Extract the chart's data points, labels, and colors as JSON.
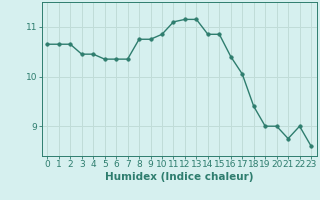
{
  "x": [
    0,
    1,
    2,
    3,
    4,
    5,
    6,
    7,
    8,
    9,
    10,
    11,
    12,
    13,
    14,
    15,
    16,
    17,
    18,
    19,
    20,
    21,
    22,
    23
  ],
  "y": [
    10.65,
    10.65,
    10.65,
    10.45,
    10.45,
    10.35,
    10.35,
    10.35,
    10.75,
    10.75,
    10.85,
    11.1,
    11.15,
    11.15,
    10.85,
    10.85,
    10.4,
    10.05,
    9.4,
    9.0,
    9.0,
    8.75,
    9.0,
    8.6
  ],
  "line_color": "#2e7d6e",
  "marker": "o",
  "markersize": 2.5,
  "linewidth": 1.0,
  "background_color": "#d6f0ef",
  "grid_color": "#c0dcd8",
  "xlabel": "Humidex (Indice chaleur)",
  "xlabel_fontsize": 7.5,
  "ylim": [
    8.4,
    11.5
  ],
  "xlim": [
    -0.5,
    23.5
  ],
  "yticks": [
    9,
    10,
    11
  ],
  "xticks": [
    0,
    1,
    2,
    3,
    4,
    5,
    6,
    7,
    8,
    9,
    10,
    11,
    12,
    13,
    14,
    15,
    16,
    17,
    18,
    19,
    20,
    21,
    22,
    23
  ],
  "tick_fontsize": 6.5,
  "tick_color": "#2e7d6e",
  "spine_color": "#2e7d6e"
}
